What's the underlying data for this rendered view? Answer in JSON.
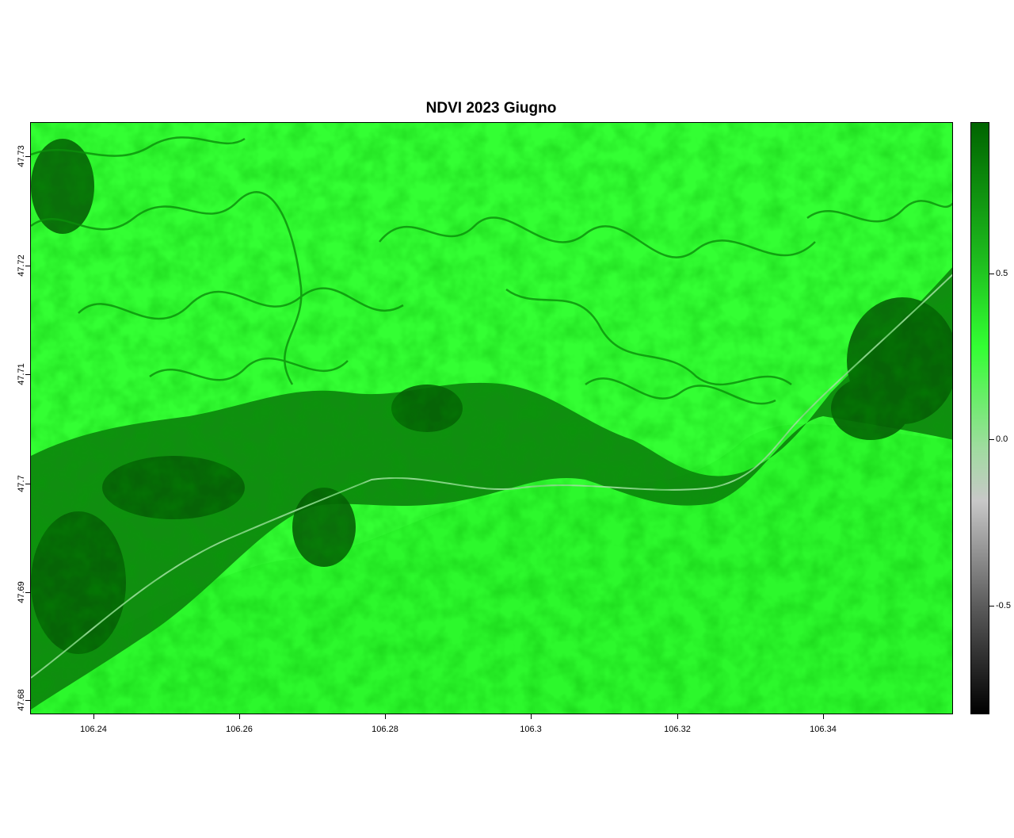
{
  "chart_data": {
    "type": "heatmap",
    "title": "NDVI 2023 Giugno",
    "x_ticks": [
      "106.24",
      "106.26",
      "106.28",
      "106.3",
      "106.32",
      "106.34"
    ],
    "y_ticks": [
      "47.68",
      "47.69",
      "47.7",
      "47.71",
      "47.72",
      "47.73"
    ],
    "xlim": [
      106.231,
      106.357
    ],
    "ylim": [
      47.6776,
      47.7329
    ],
    "legend": {
      "ticks": [
        "0.5",
        "0.0",
        "-0.5"
      ],
      "range": [
        -0.9,
        0.9
      ],
      "colors": [
        "#000000",
        "#c8c8c8",
        "#33ff33",
        "#006400"
      ]
    },
    "dominant_value": 0.45
  }
}
